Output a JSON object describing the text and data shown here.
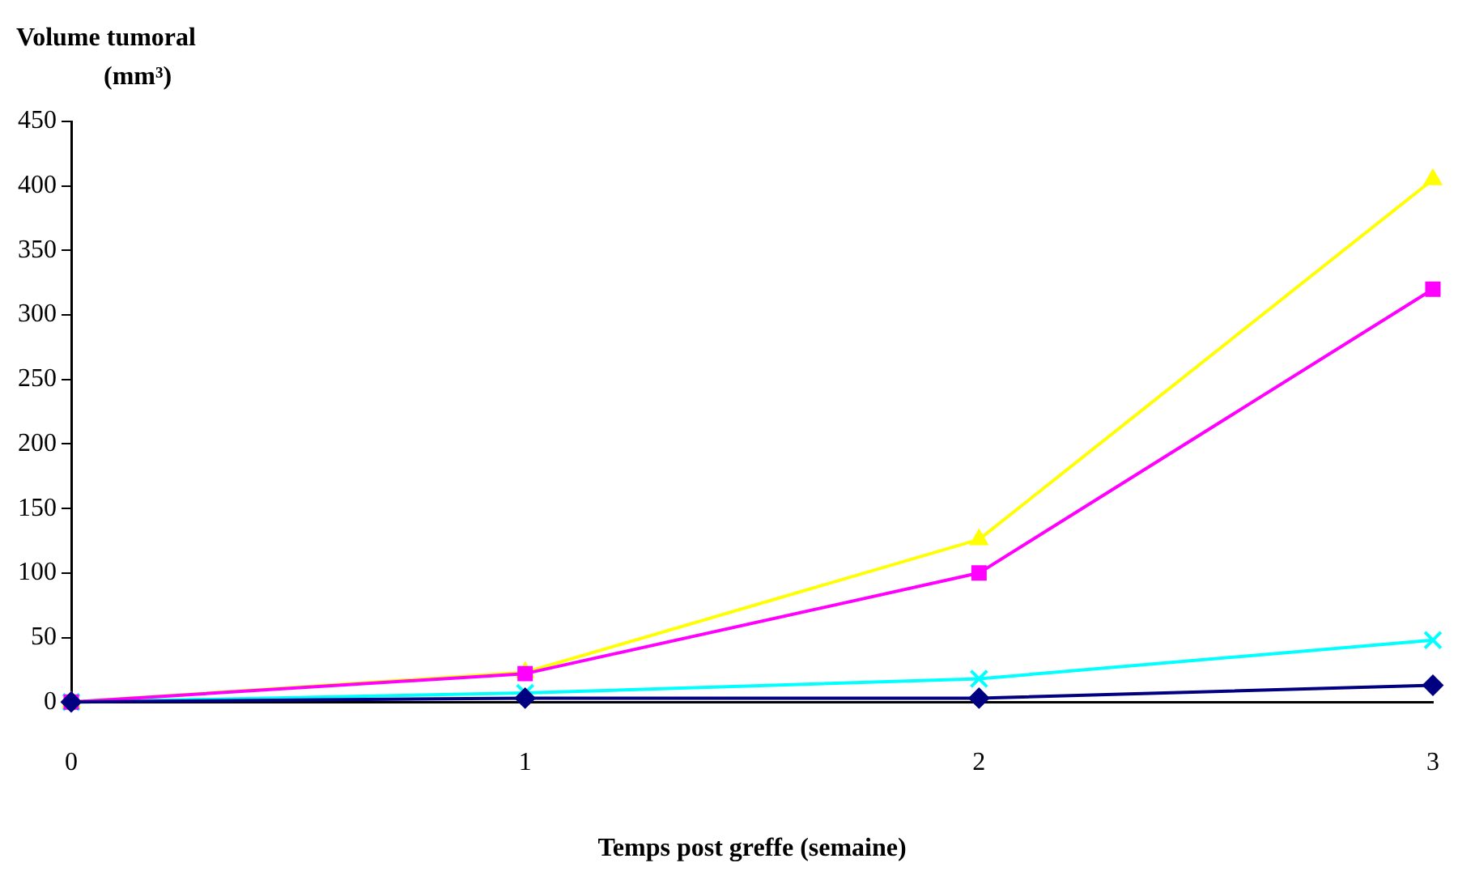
{
  "chart_data": {
    "type": "line",
    "ylabel": "Volume tumoral (mm³)",
    "xlabel": "Temps post greffe (semaine)",
    "x": [
      0,
      1,
      2,
      3
    ],
    "xlim": [
      0,
      3
    ],
    "xticks": [
      0,
      1,
      2,
      3
    ],
    "ylim": [
      0,
      450
    ],
    "yticks": [
      0,
      50,
      100,
      150,
      200,
      250,
      300,
      350,
      400,
      450
    ],
    "grid": false,
    "legend": false,
    "line_style": "solid",
    "series": [
      {
        "color": "#000080",
        "marker": "diamond",
        "values": [
          0,
          3,
          3,
          13
        ]
      },
      {
        "color": "#ff00ff",
        "marker": "square",
        "values": [
          0,
          22,
          100,
          320
        ]
      },
      {
        "color": "#ffff00",
        "marker": "triangle",
        "values": [
          0,
          23,
          126,
          405
        ]
      },
      {
        "color": "#00ffff",
        "marker": "cross",
        "values": [
          0,
          7,
          18,
          48
        ]
      }
    ]
  }
}
